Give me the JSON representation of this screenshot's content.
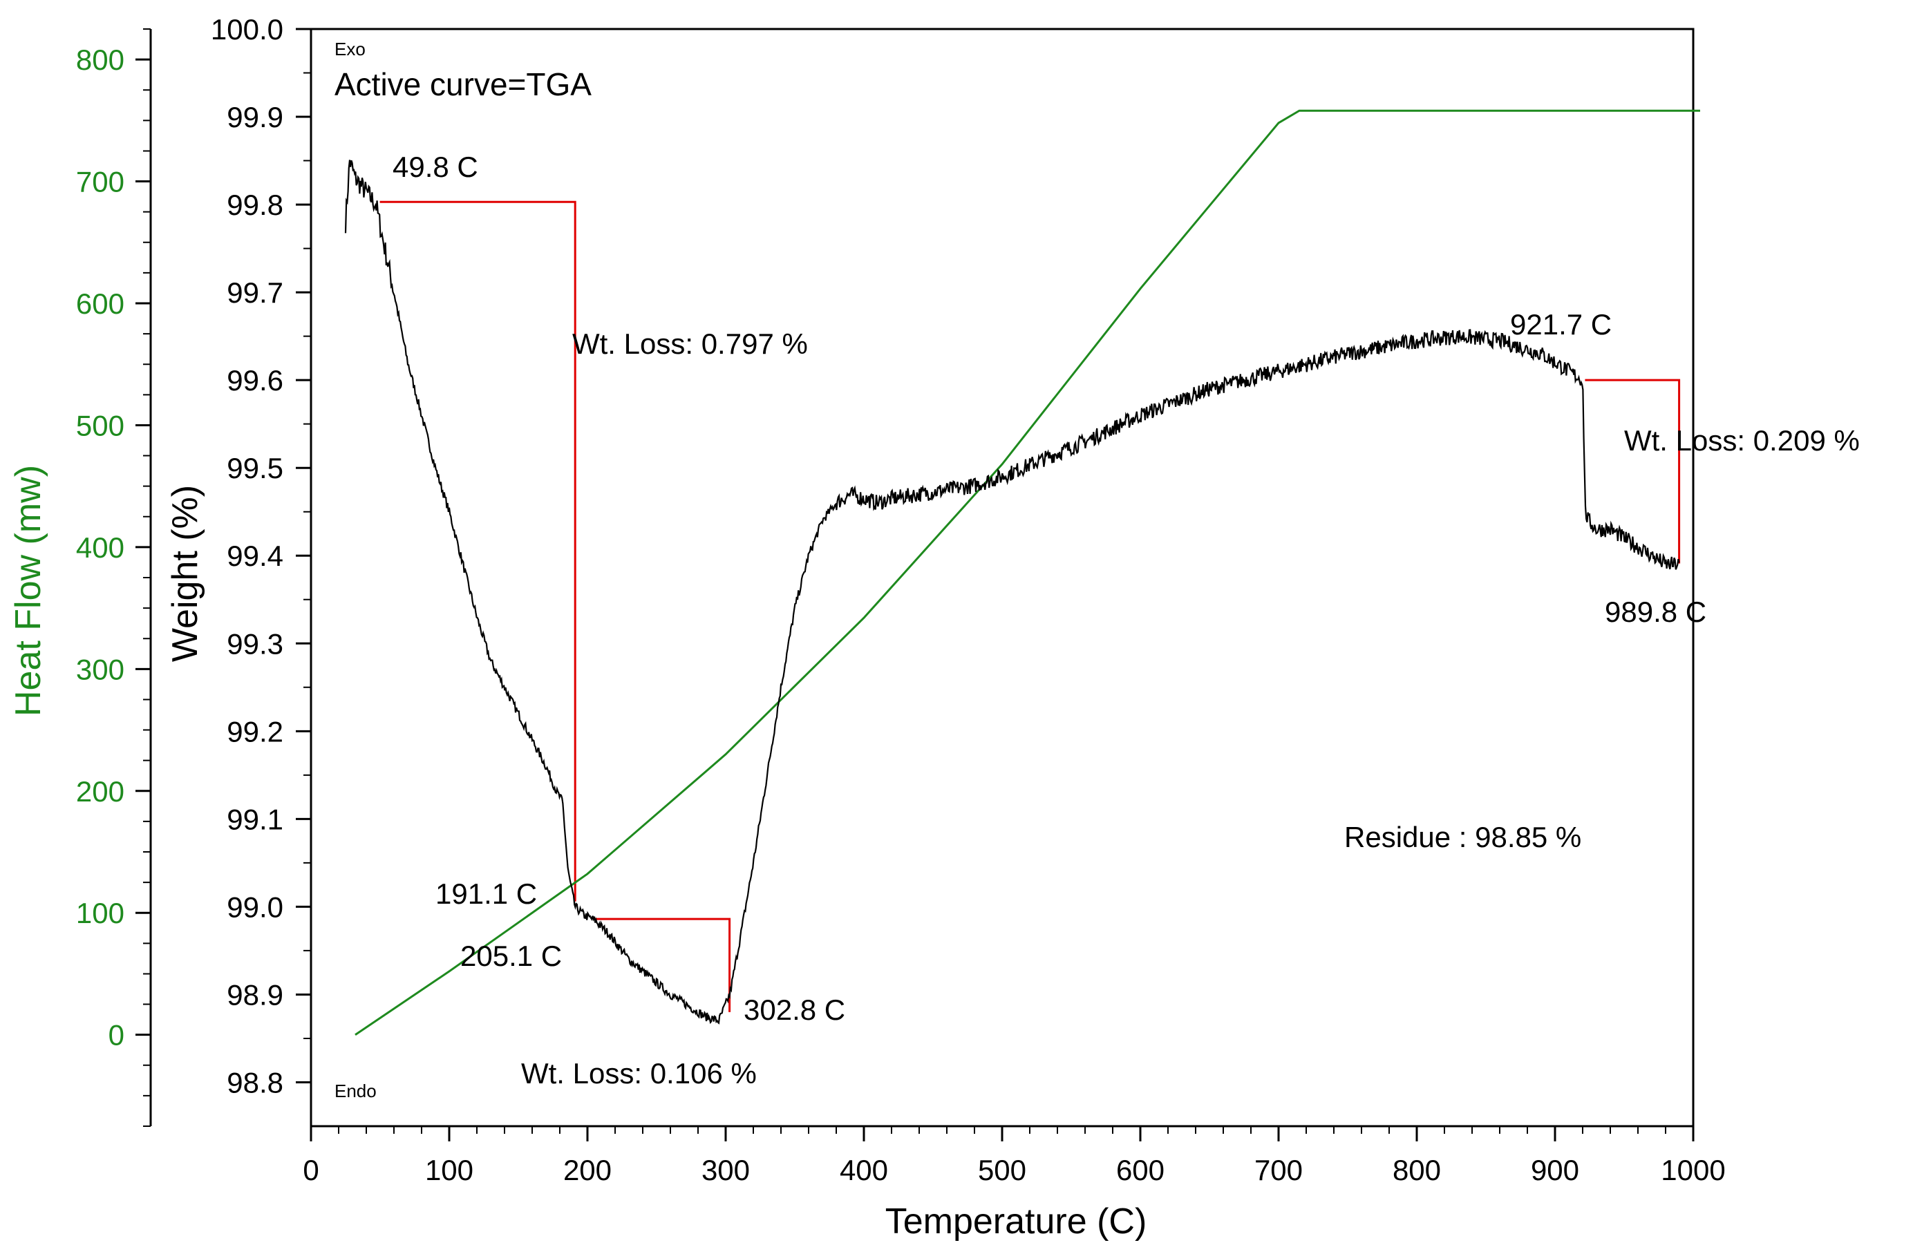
{
  "chart_data": {
    "type": "line",
    "title": "",
    "xlabel": "Temperature (C)",
    "ylabel": "Weight (%)",
    "y2label": "Heat Flow (mw)",
    "xlim": [
      0,
      1000
    ],
    "ylim": [
      98.75,
      100.0
    ],
    "y2lim": [
      -75,
      825
    ],
    "x_ticks": [
      "0",
      "100",
      "200",
      "300",
      "400",
      "500",
      "600",
      "700",
      "800",
      "900",
      "1000"
    ],
    "x_tick_values": [
      0,
      100,
      200,
      300,
      400,
      500,
      600,
      700,
      800,
      900,
      1000
    ],
    "y_ticks": [
      "98.8",
      "98.9",
      "99.0",
      "99.1",
      "99.2",
      "99.3",
      "99.4",
      "99.5",
      "99.6",
      "99.7",
      "99.8",
      "99.9",
      "100.0"
    ],
    "y_tick_values": [
      98.8,
      98.9,
      99.0,
      99.1,
      99.2,
      99.3,
      99.4,
      99.5,
      99.6,
      99.7,
      99.8,
      99.9,
      100.0
    ],
    "y2_ticks": [
      "0",
      "100",
      "200",
      "300",
      "400",
      "500",
      "600",
      "700",
      "800"
    ],
    "y2_tick_values": [
      0,
      100,
      200,
      300,
      400,
      500,
      600,
      700,
      800
    ],
    "exo_label": "Exo",
    "endo_label": "Endo",
    "active_curve": "Active curve=TGA",
    "residue": "Residue : 98.85 %",
    "colors": {
      "tga": "#000000",
      "heat_flow": "#1e8a1e",
      "step": "#e00000",
      "axis": "#000000"
    },
    "series": [
      {
        "name": "TGA",
        "axis": "left",
        "x": [
          25,
          28,
          32,
          37,
          42,
          47,
          52,
          60,
          70,
          80,
          90,
          100,
          110,
          120,
          130,
          140,
          150,
          160,
          170,
          178,
          182,
          186,
          191,
          198,
          205,
          215,
          230,
          245,
          260,
          275,
          285,
          295,
          303,
          310,
          320,
          330,
          340,
          350,
          360,
          370,
          380,
          390,
          400,
          410,
          420,
          440,
          460,
          480,
          500,
          530,
          560,
          600,
          650,
          700,
          750,
          800,
          830,
          860,
          890,
          905,
          915,
          920,
          922,
          924,
          930,
          940,
          950,
          960,
          970,
          980,
          990
        ],
        "y": [
          99.78,
          99.85,
          99.83,
          99.82,
          99.81,
          99.8,
          99.76,
          99.7,
          99.62,
          99.56,
          99.5,
          99.45,
          99.39,
          99.33,
          99.28,
          99.25,
          99.22,
          99.19,
          99.16,
          99.13,
          99.12,
          99.04,
          99.0,
          98.99,
          98.985,
          98.97,
          98.94,
          98.92,
          98.9,
          98.885,
          98.875,
          98.87,
          98.9,
          98.96,
          99.05,
          99.15,
          99.25,
          99.34,
          99.4,
          99.44,
          99.46,
          99.47,
          99.465,
          99.46,
          99.465,
          99.47,
          99.475,
          99.48,
          99.49,
          99.51,
          99.53,
          99.56,
          99.59,
          99.61,
          99.63,
          99.645,
          99.65,
          99.645,
          99.63,
          99.615,
          99.605,
          99.6,
          99.45,
          99.44,
          99.43,
          99.43,
          99.42,
          99.41,
          99.4,
          99.39,
          99.39
        ]
      },
      {
        "name": "Heat Flow",
        "axis": "right",
        "x": [
          32,
          100,
          200,
          300,
          400,
          500,
          600,
          700,
          715,
          800,
          900,
          1005
        ],
        "y": [
          0,
          52,
          132,
          230,
          342,
          468,
          612,
          748,
          758,
          758,
          758,
          758
        ]
      }
    ],
    "annotations": [
      {
        "label": "49.8 C",
        "x": 49.8,
        "y": 99.8
      },
      {
        "label": "191.1 C",
        "x": 191.1,
        "y": 99.0
      },
      {
        "label": "205.1 C",
        "x": 205.1,
        "y": 98.985
      },
      {
        "label": "302.8 C",
        "x": 302.8,
        "y": 98.88
      },
      {
        "label": "921.7 C",
        "x": 921.7,
        "y": 99.6
      },
      {
        "label": "989.8 C",
        "x": 989.8,
        "y": 99.39
      },
      {
        "label": "Wt. Loss: 0.797 %",
        "x": 191.1,
        "y": 99.64
      },
      {
        "label": "Wt. Loss: 0.106 %",
        "x": 254,
        "y": 98.79
      },
      {
        "label": "Wt. Loss: 0.209 %",
        "x": 993,
        "y": 99.52
      }
    ],
    "weight_loss_steps": [
      {
        "start_temp": 49.8,
        "end_temp": 191.1,
        "start_weight": 99.803,
        "end_weight": 99.006,
        "loss": "0.797 %"
      },
      {
        "start_temp": 205.1,
        "end_temp": 302.8,
        "start_weight": 98.986,
        "end_weight": 98.88,
        "loss": "0.106 %"
      },
      {
        "start_temp": 921.7,
        "end_temp": 989.8,
        "start_weight": 99.6,
        "end_weight": 99.391,
        "loss": "0.209 %"
      }
    ]
  }
}
